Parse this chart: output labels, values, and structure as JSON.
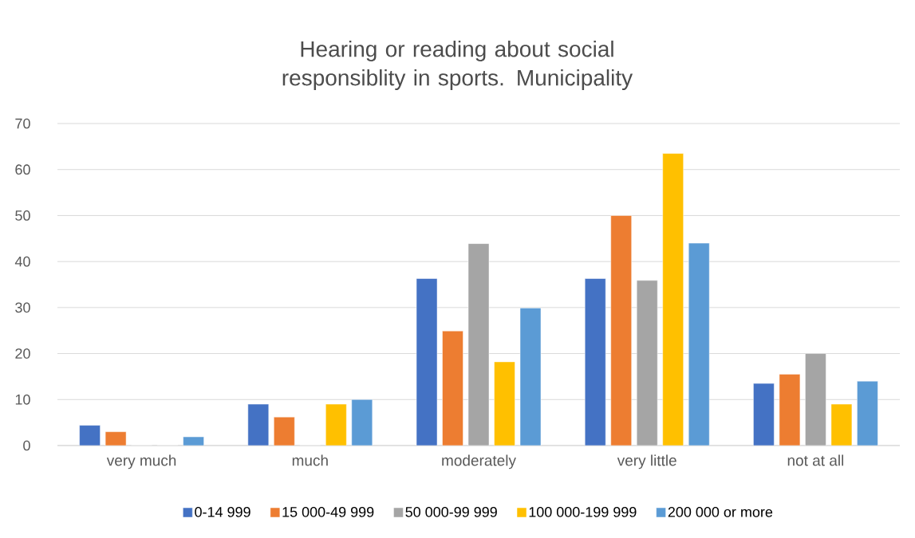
{
  "chart_data": {
    "type": "bar",
    "title": "Hearing or reading about social responsiblity in sports. Municipality",
    "categories": [
      "very much",
      "much",
      "moderately",
      "very little",
      "not at all"
    ],
    "series": [
      {
        "name": "0-14 999",
        "color": "#4472c4",
        "values": [
          4.4,
          9.0,
          36.3,
          36.3,
          13.5
        ]
      },
      {
        "name": "15 000-49 999",
        "color": "#ed7d31",
        "values": [
          3.0,
          6.2,
          24.9,
          50,
          15.5
        ]
      },
      {
        "name": "50 000-99 999",
        "color": "#a5a5a5",
        "values": [
          0,
          0,
          43.9,
          35.9,
          20
        ]
      },
      {
        "name": "100 000-199 999",
        "color": "#ffc000",
        "values": [
          0,
          9.0,
          18.2,
          63.5,
          9.0
        ]
      },
      {
        "name": "200 000 or more",
        "color": "#5b9bd5",
        "values": [
          1.9,
          10,
          29.9,
          44,
          14
        ]
      }
    ],
    "ylim": [
      0,
      70
    ],
    "yticks": [
      0,
      10,
      20,
      30,
      40,
      50,
      60,
      70
    ],
    "grid": "y",
    "legend": "bottom"
  }
}
